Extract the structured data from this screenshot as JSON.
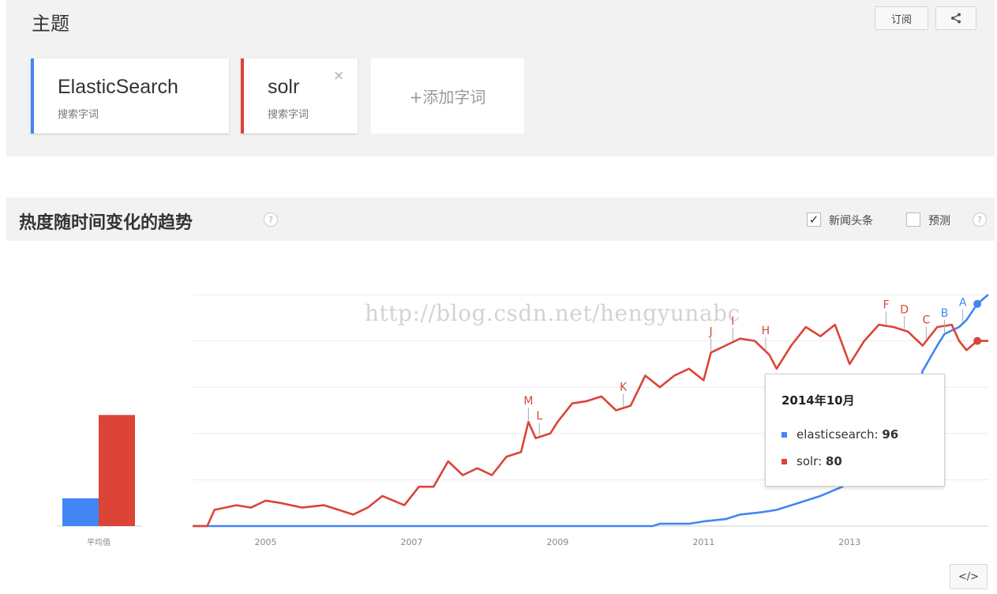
{
  "topics": {
    "title": "主题",
    "subscribe_label": "订阅",
    "share_icon": "share-icon",
    "cards": [
      {
        "name": "ElasticSearch",
        "sub": "搜索字词",
        "color": "#4285f4"
      },
      {
        "name": "solr",
        "sub": "搜索字词",
        "color": "#db4437",
        "close": "×"
      }
    ],
    "add_label": "+添加字词"
  },
  "trend": {
    "title": "热度随时间变化的趋势",
    "help": "?",
    "headlines_label": "新闻头条",
    "headlines_checked": "✓",
    "forecast_label": "预测",
    "embed_label": "</>"
  },
  "watermark": "http://blog.csdn.net/hengyunabc",
  "tooltip": {
    "date": "2014年10月",
    "rows": [
      {
        "name": "elasticsearch: ",
        "value": "96",
        "color": "#4285f4"
      },
      {
        "name": "solr: ",
        "value": "80",
        "color": "#db4437"
      }
    ]
  },
  "chart_data": {
    "type": "line",
    "x_ticks": [
      "2005",
      "2007",
      "2009",
      "2011",
      "2013"
    ],
    "average": {
      "label": "平均值",
      "elasticsearch": 12,
      "solr": 48
    },
    "ylim": [
      0,
      100
    ],
    "series": [
      {
        "name": "elasticsearch",
        "color": "#4285f4",
        "points": [
          [
            2004.0,
            0
          ],
          [
            2005,
            0
          ],
          [
            2007,
            0
          ],
          [
            2009,
            0
          ],
          [
            2010.3,
            0
          ],
          [
            2010.4,
            1
          ],
          [
            2010.8,
            1
          ],
          [
            2011.0,
            2
          ],
          [
            2011.3,
            3
          ],
          [
            2011.5,
            5
          ],
          [
            2011.8,
            6
          ],
          [
            2012.0,
            7
          ],
          [
            2012.3,
            10
          ],
          [
            2012.6,
            13
          ],
          [
            2012.9,
            17
          ],
          [
            2013.0,
            20
          ],
          [
            2013.2,
            25
          ],
          [
            2013.5,
            32
          ],
          [
            2013.7,
            40
          ],
          [
            2013.9,
            52
          ],
          [
            2014.0,
            67
          ],
          [
            2014.2,
            78
          ],
          [
            2014.3,
            83
          ],
          [
            2014.5,
            86
          ],
          [
            2014.6,
            89
          ],
          [
            2014.75,
            96
          ],
          [
            2014.9,
            100
          ]
        ]
      },
      {
        "name": "solr",
        "color": "#db4437",
        "points": [
          [
            2004.0,
            0
          ],
          [
            2004.2,
            0
          ],
          [
            2004.3,
            7
          ],
          [
            2004.6,
            9
          ],
          [
            2004.8,
            8
          ],
          [
            2005.0,
            11
          ],
          [
            2005.2,
            10
          ],
          [
            2005.5,
            8
          ],
          [
            2005.8,
            9
          ],
          [
            2006.0,
            7
          ],
          [
            2006.2,
            5
          ],
          [
            2006.4,
            8
          ],
          [
            2006.6,
            13
          ],
          [
            2006.9,
            9
          ],
          [
            2007.1,
            17
          ],
          [
            2007.3,
            17
          ],
          [
            2007.5,
            28
          ],
          [
            2007.7,
            22
          ],
          [
            2007.9,
            25
          ],
          [
            2008.1,
            22
          ],
          [
            2008.3,
            30
          ],
          [
            2008.5,
            32
          ],
          [
            2008.6,
            45
          ],
          [
            2008.7,
            38
          ],
          [
            2008.9,
            40
          ],
          [
            2009.0,
            45
          ],
          [
            2009.2,
            53
          ],
          [
            2009.4,
            54
          ],
          [
            2009.6,
            56
          ],
          [
            2009.8,
            50
          ],
          [
            2010.0,
            52
          ],
          [
            2010.2,
            65
          ],
          [
            2010.4,
            60
          ],
          [
            2010.6,
            65
          ],
          [
            2010.8,
            68
          ],
          [
            2011.0,
            63
          ],
          [
            2011.1,
            75
          ],
          [
            2011.3,
            78
          ],
          [
            2011.5,
            81
          ],
          [
            2011.7,
            80
          ],
          [
            2011.9,
            74
          ],
          [
            2012.0,
            68
          ],
          [
            2012.2,
            78
          ],
          [
            2012.4,
            86
          ],
          [
            2012.6,
            82
          ],
          [
            2012.8,
            87
          ],
          [
            2013.0,
            70
          ],
          [
            2013.2,
            80
          ],
          [
            2013.4,
            87
          ],
          [
            2013.6,
            86
          ],
          [
            2013.8,
            84
          ],
          [
            2014.0,
            78
          ],
          [
            2014.2,
            86
          ],
          [
            2014.4,
            87
          ],
          [
            2014.5,
            80
          ],
          [
            2014.6,
            76
          ],
          [
            2014.75,
            80
          ],
          [
            2014.9,
            80
          ]
        ]
      }
    ],
    "annotations": [
      {
        "letter": "M",
        "x": 2008.6,
        "color": "#db4437"
      },
      {
        "letter": "L",
        "x": 2008.75,
        "color": "#db4437"
      },
      {
        "letter": "K",
        "x": 2009.9,
        "color": "#db4437"
      },
      {
        "letter": "J",
        "x": 2011.1,
        "color": "#db4437"
      },
      {
        "letter": "I",
        "x": 2011.4,
        "color": "#db4437"
      },
      {
        "letter": "H",
        "x": 2011.85,
        "color": "#db4437"
      },
      {
        "letter": "F",
        "x": 2013.5,
        "color": "#db4437"
      },
      {
        "letter": "D",
        "x": 2013.75,
        "color": "#db4437"
      },
      {
        "letter": "C",
        "x": 2014.05,
        "color": "#db4437"
      },
      {
        "letter": "B",
        "x": 2014.3,
        "color": "#4285f4"
      },
      {
        "letter": "A",
        "x": 2014.55,
        "color": "#4285f4"
      }
    ]
  }
}
